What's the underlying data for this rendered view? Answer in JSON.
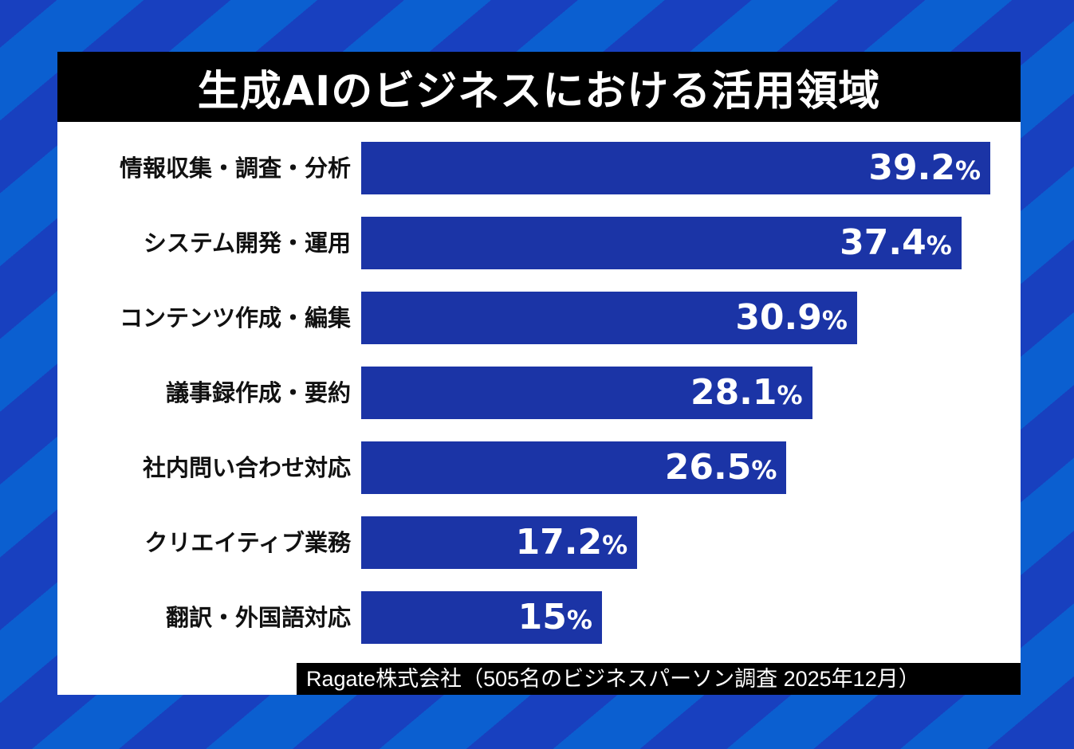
{
  "chart_data": {
    "type": "bar",
    "orientation": "horizontal",
    "title": "生成AIのビジネスにおける活用領域",
    "categories": [
      "情報収集・調査・分析",
      "システム開発・運用",
      "コンテンツ作成・編集",
      "議事録作成・要約",
      "社内問い合わせ対応",
      "クリエイティブ業務",
      "翻訳・外国語対応"
    ],
    "values": [
      39.2,
      37.4,
      30.9,
      28.1,
      26.5,
      17.2,
      15
    ],
    "value_labels": [
      "39.2",
      "37.4",
      "30.9",
      "28.1",
      "26.5",
      "17.2",
      "15"
    ],
    "unit": "%",
    "xlim": [
      0,
      39.2
    ],
    "grid": false,
    "bar_color": "#1b34a6",
    "source": "Ragate株式会社（505名のビジネスパーソン調査 2025年12月）"
  }
}
